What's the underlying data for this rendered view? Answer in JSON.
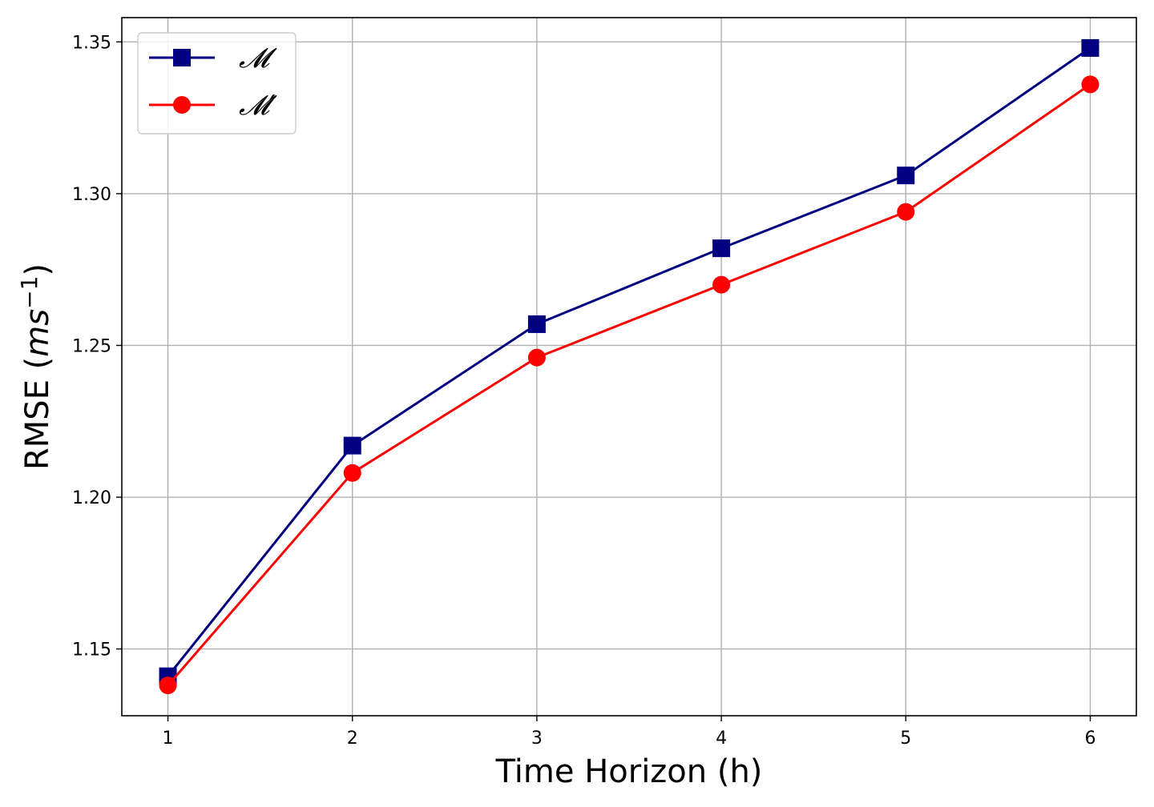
{
  "chart_data": {
    "type": "line",
    "x": [
      1,
      2,
      3,
      4,
      5,
      6
    ],
    "series": [
      {
        "name": "𝓜",
        "color": "#000080",
        "marker": "square",
        "values": [
          1.141,
          1.217,
          1.257,
          1.282,
          1.306,
          1.348
        ]
      },
      {
        "name": "𝓜′",
        "color": "#ff0000",
        "marker": "circle",
        "values": [
          1.138,
          1.208,
          1.246,
          1.27,
          1.294,
          1.336
        ]
      }
    ],
    "xlabel": "Time Horizon (h)",
    "ylabel": "RMSE (ms⁻¹)",
    "xlim": [
      0.75,
      6.25
    ],
    "ylim": [
      1.128,
      1.358
    ],
    "xticks": [
      1,
      2,
      3,
      4,
      5,
      6
    ],
    "xtick_labels": [
      "1",
      "2",
      "3",
      "4",
      "5",
      "6"
    ],
    "yticks": [
      1.15,
      1.2,
      1.25,
      1.3,
      1.35
    ],
    "ytick_labels": [
      "1.15",
      "1.20",
      "1.25",
      "1.30",
      "1.35"
    ],
    "grid": true,
    "legend_position": "top-left"
  }
}
